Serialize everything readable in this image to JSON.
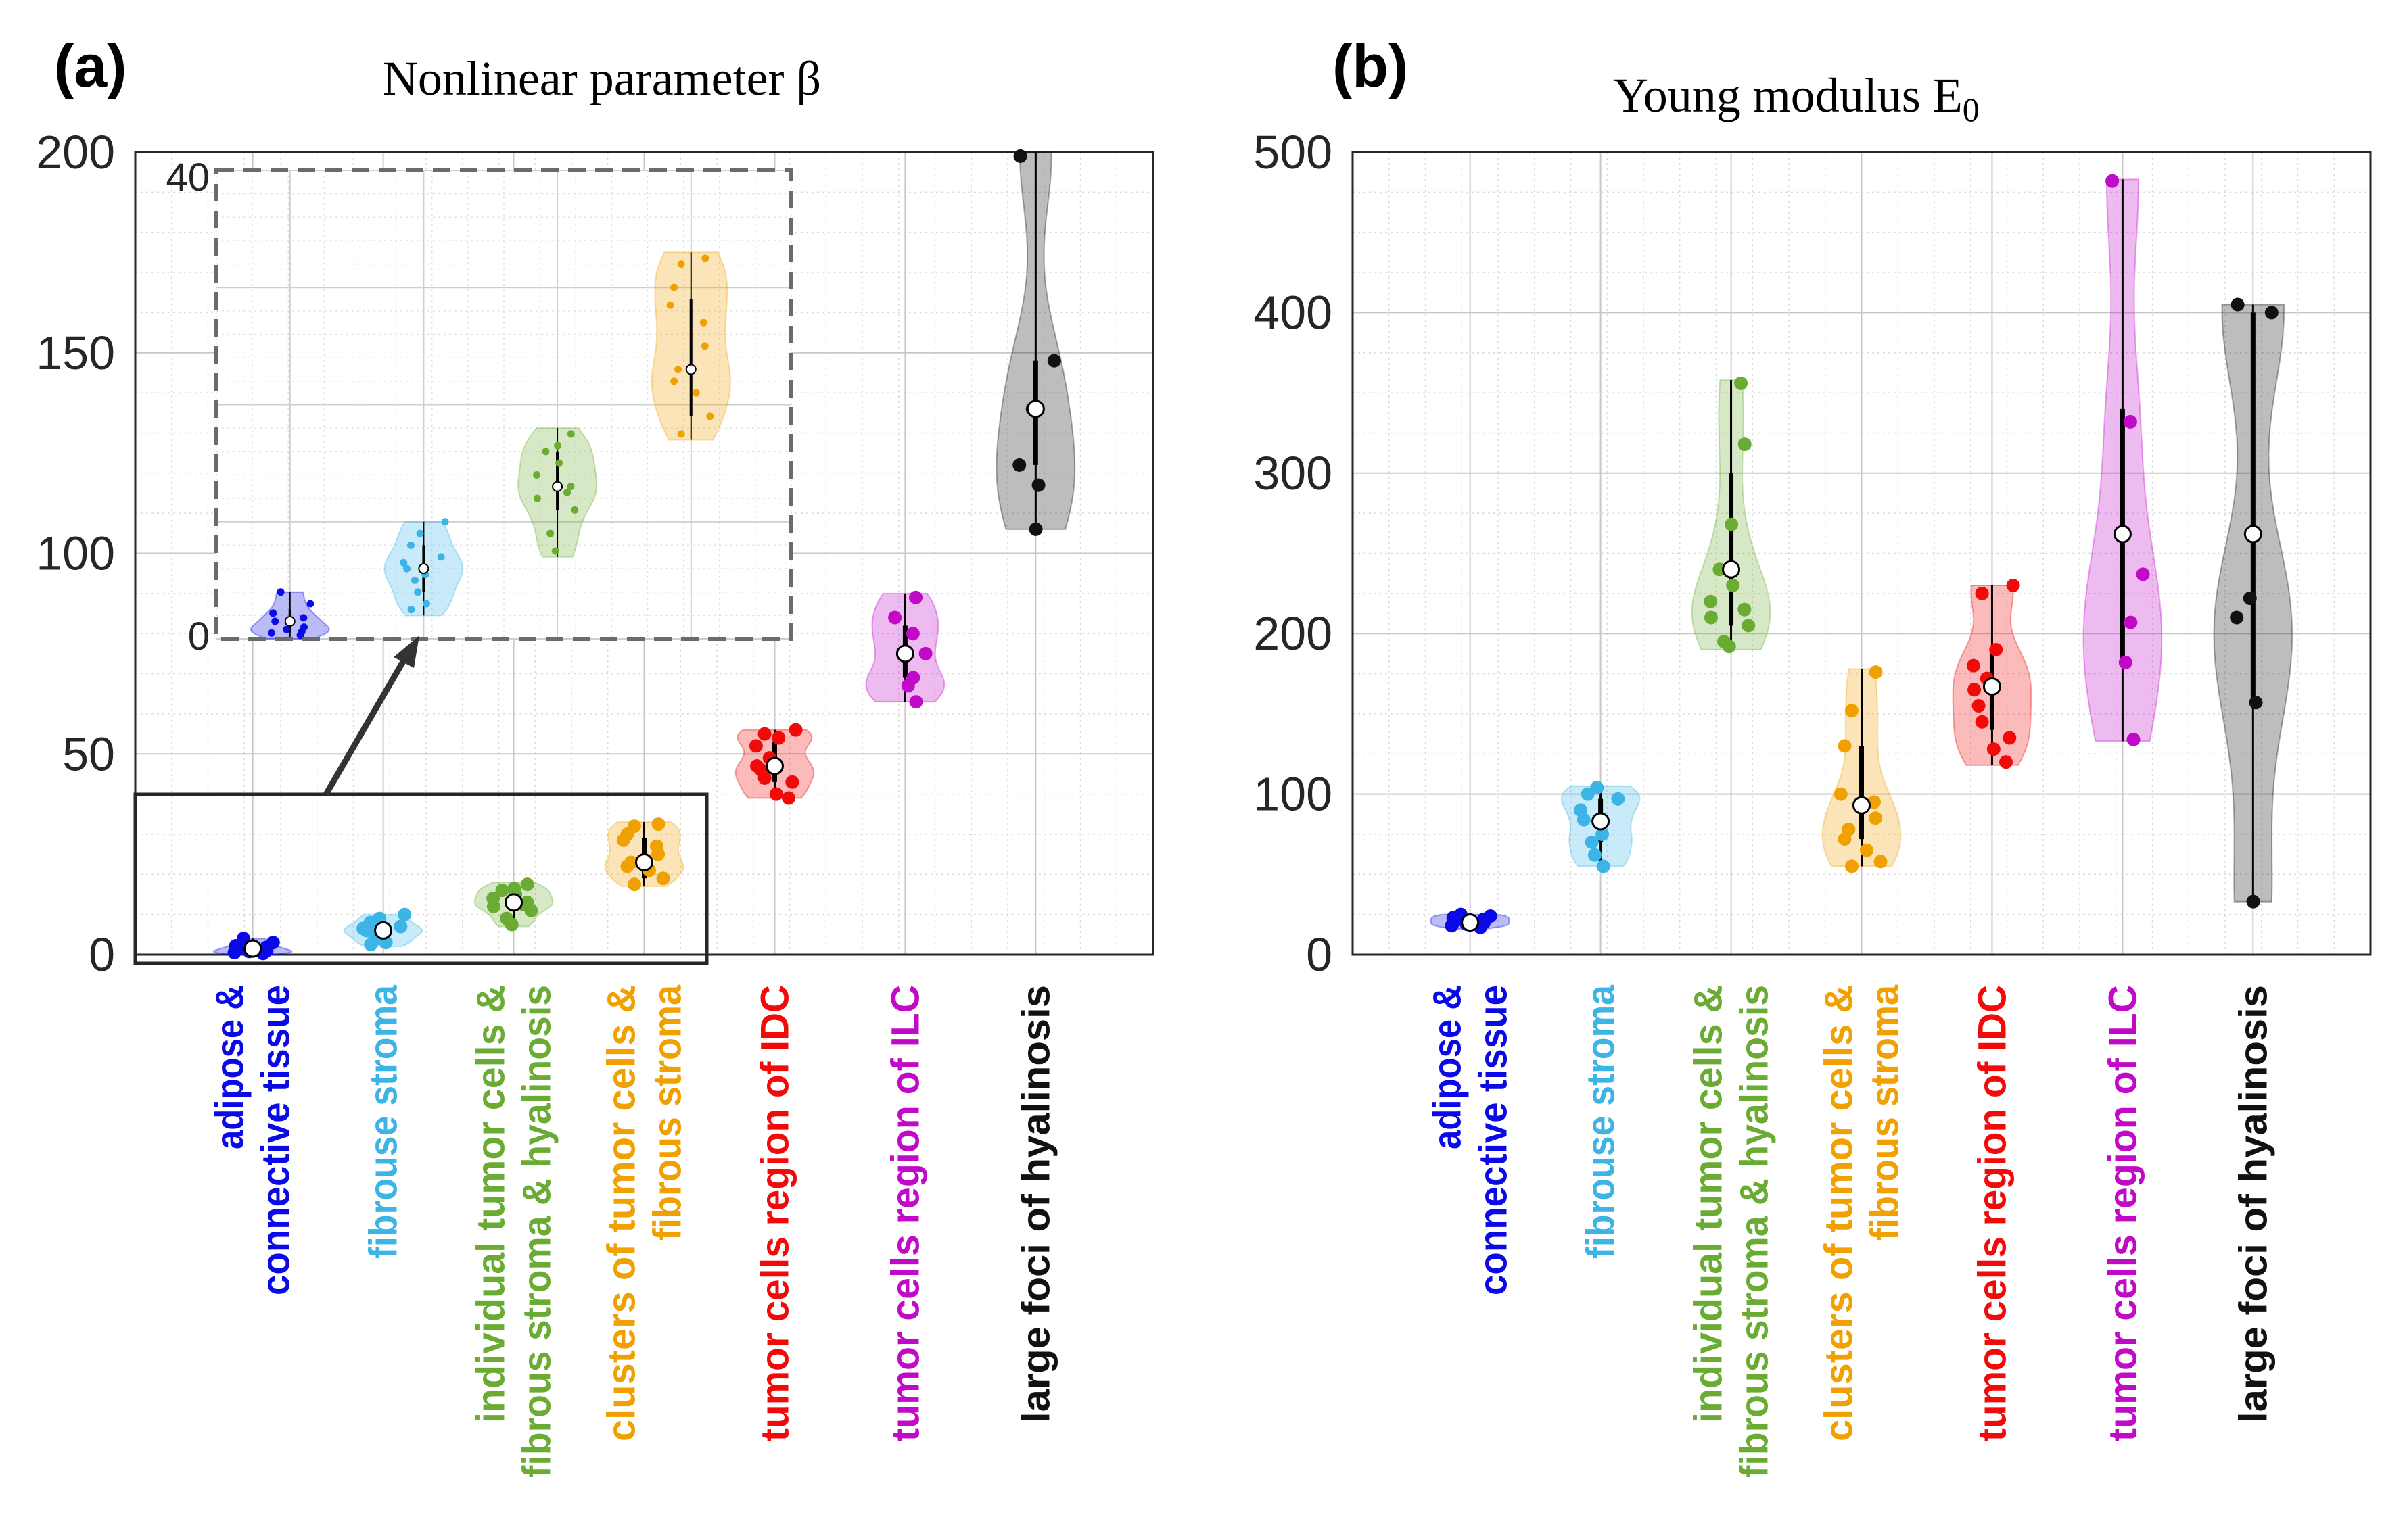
{
  "colors": {
    "adipose": "#0a0ae6",
    "fibrous": "#3cb4e6",
    "individual": "#6aab33",
    "clusters": "#f0a000",
    "idc": "#f00a0a",
    "ilc": "#c00ac8",
    "hyalinosis": "#111111"
  },
  "chart_data": [
    {
      "type": "violin",
      "panel_label": "(a)",
      "title": "Nonlinear parameter β",
      "ylim": [
        0,
        200
      ],
      "yticks": [
        "0",
        "50",
        "100",
        "150",
        "200"
      ],
      "grid": true,
      "categories": [
        [
          "adipose &",
          "connective tissue"
        ],
        [
          "fibrouse stroma"
        ],
        [
          "individual tumor cells &",
          "fibrous stroma & hyalinosis"
        ],
        [
          "clusters of tumor cells &",
          "fibrous stroma"
        ],
        [
          "tumor cells region of IDC"
        ],
        [
          "tumor cells region of ILC"
        ],
        [
          "large foci of hyalinosis"
        ]
      ],
      "series": [
        {
          "name": "adipose & connective tissue",
          "median": 1.5,
          "q1": 0.5,
          "q3": 2.5,
          "min": 0,
          "max": 4,
          "points": [
            0.3,
            0.5,
            0.8,
            1.0,
            1.5,
            1.8,
            2.2,
            3.0,
            4.0,
            0.6
          ]
        },
        {
          "name": "fibrouse stroma",
          "median": 6,
          "q1": 4,
          "q3": 8,
          "min": 2,
          "max": 10,
          "points": [
            3,
            4,
            5,
            5.5,
            6,
            6.5,
            7,
            8,
            9,
            10,
            2.5
          ]
        },
        {
          "name": "individual tumor cells & fibrous stroma & hyalinosis",
          "median": 13,
          "q1": 11,
          "q3": 16,
          "min": 7,
          "max": 18,
          "points": [
            7.5,
            9,
            11,
            12,
            13,
            14,
            15,
            16,
            16.5,
            17.5,
            12.5
          ]
        },
        {
          "name": "clusters of tumor cells & fibrous stroma",
          "median": 23,
          "q1": 19,
          "q3": 29,
          "min": 17,
          "max": 33,
          "points": [
            17.5,
            19,
            21,
            22,
            23,
            25,
            27,
            28.5,
            30,
            32,
            32.5
          ]
        },
        {
          "name": "tumor cells region of IDC",
          "median": 47,
          "q1": 43,
          "q3": 53,
          "min": 39,
          "max": 56,
          "points": [
            39,
            40,
            43,
            44,
            46,
            47,
            49,
            52,
            54,
            55,
            56
          ]
        },
        {
          "name": "tumor cells region of ILC",
          "median": 75,
          "q1": 69,
          "q3": 82,
          "min": 63,
          "max": 90,
          "points": [
            63,
            67,
            69,
            75,
            80,
            84,
            89
          ]
        },
        {
          "name": "large foci of hyalinosis",
          "median": 136,
          "q1": 122,
          "q3": 148,
          "min": 106,
          "max": 200,
          "points": [
            106,
            117,
            122,
            136,
            148,
            199
          ]
        }
      ],
      "inset": {
        "ylim": [
          0,
          40
        ],
        "yticks": [
          "0",
          "40"
        ],
        "source_range": "categories 1-4, 0-40"
      }
    },
    {
      "type": "violin",
      "panel_label": "(b)",
      "title": "Young modulus E",
      "title_sub": "0",
      "ylim": [
        0,
        500
      ],
      "yticks": [
        "0",
        "100",
        "200",
        "300",
        "400",
        "500"
      ],
      "grid": true,
      "categories": [
        [
          "adipose &",
          "connective tissue"
        ],
        [
          "fibrouse stroma"
        ],
        [
          "individual tumor cells &",
          "fibrous stroma & hyalinosis"
        ],
        [
          "clusters of tumor cells &",
          "fibrous stroma"
        ],
        [
          "tumor cells region of IDC"
        ],
        [
          "tumor cells region of ILC"
        ],
        [
          "large foci of hyalinosis"
        ]
      ],
      "series": [
        {
          "name": "adipose & connective tissue",
          "median": 20,
          "q1": 18,
          "q3": 23,
          "min": 16,
          "max": 25,
          "points": [
            17,
            18,
            19,
            20,
            21,
            22,
            23,
            24,
            25
          ]
        },
        {
          "name": "fibrouse stroma",
          "median": 83,
          "q1": 70,
          "q3": 97,
          "min": 55,
          "max": 105,
          "points": [
            55,
            62,
            70,
            75,
            84,
            90,
            97,
            100,
            104
          ]
        },
        {
          "name": "individual tumor cells & fibrous stroma & hyalinosis",
          "median": 240,
          "q1": 205,
          "q3": 300,
          "min": 190,
          "max": 358,
          "points": [
            192,
            195,
            205,
            210,
            215,
            220,
            230,
            240,
            268,
            318,
            356
          ]
        },
        {
          "name": "clusters of tumor cells & fibrous stroma",
          "median": 93,
          "q1": 72,
          "q3": 130,
          "min": 55,
          "max": 178,
          "points": [
            55,
            58,
            65,
            72,
            78,
            85,
            95,
            100,
            130,
            152,
            176
          ]
        },
        {
          "name": "tumor cells region of IDC",
          "median": 167,
          "q1": 140,
          "q3": 190,
          "min": 118,
          "max": 230,
          "points": [
            120,
            128,
            135,
            145,
            155,
            165,
            172,
            180,
            190,
            225,
            230
          ]
        },
        {
          "name": "tumor cells region of ILC",
          "median": 262,
          "q1": 180,
          "q3": 340,
          "min": 133,
          "max": 483,
          "points": [
            134,
            182,
            207,
            237,
            332,
            482
          ]
        },
        {
          "name": "large foci of hyalinosis",
          "median": 262,
          "q1": 157,
          "q3": 400,
          "min": 33,
          "max": 405,
          "points": [
            33,
            157,
            210,
            222,
            400,
            405
          ]
        }
      ]
    }
  ]
}
